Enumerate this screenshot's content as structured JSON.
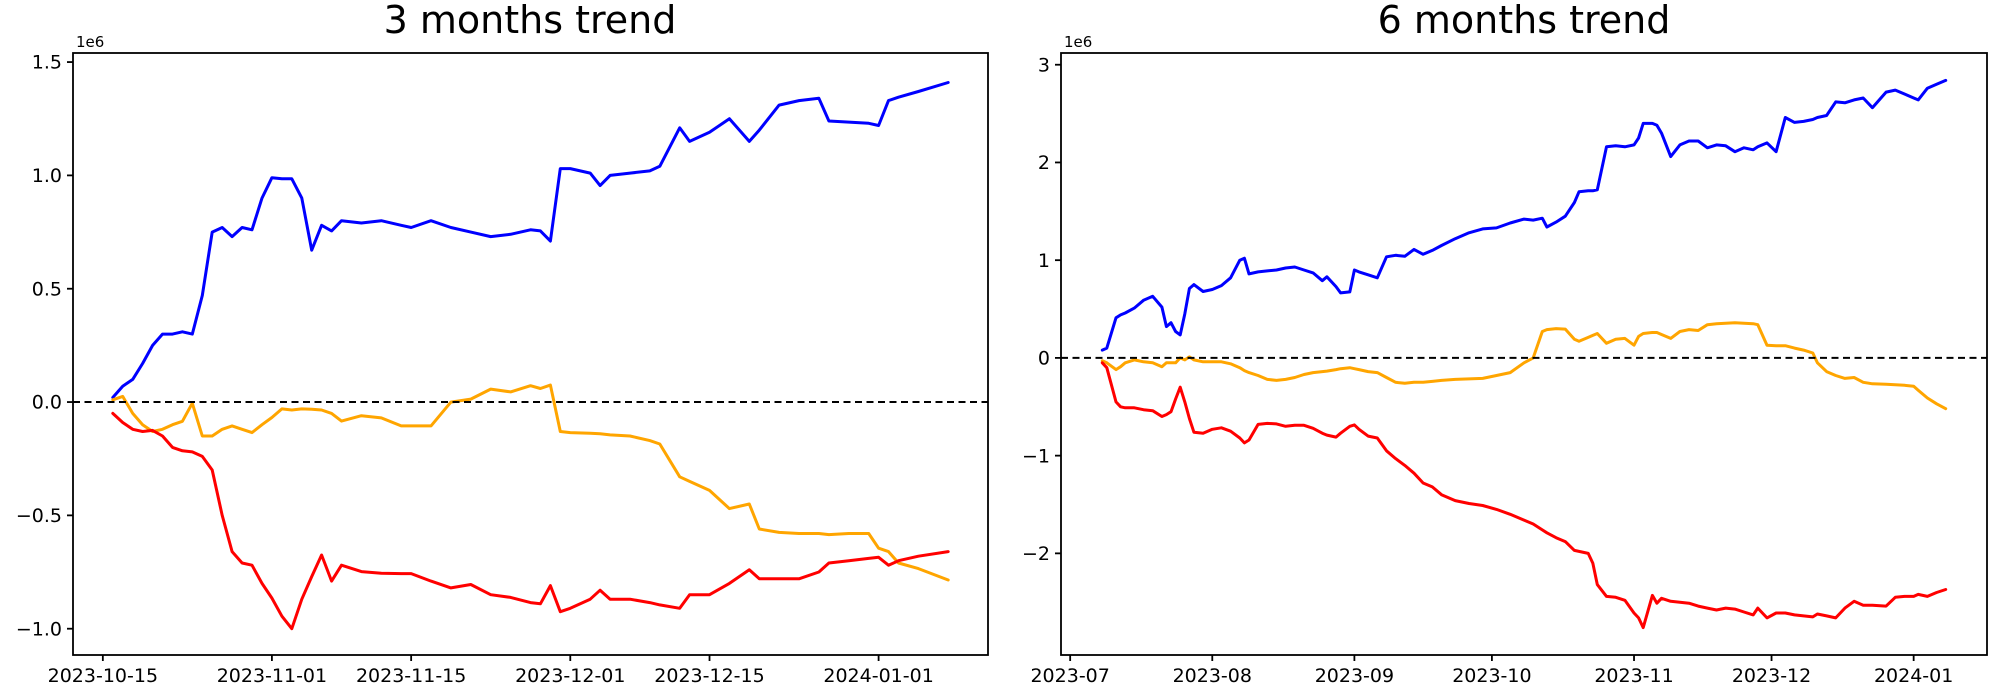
{
  "figure": {
    "background": "#ffffff"
  },
  "chart_data": [
    {
      "type": "line",
      "title": "3 months trend",
      "offset_label": "1e6",
      "xlabel": "",
      "ylabel": "",
      "grid": false,
      "legend": null,
      "x_unit": "date",
      "y_scale_factor": 1000000,
      "xlim": [
        "2023-10-12",
        "2024-01-12"
      ],
      "ylim": [
        -1.116,
        1.54
      ],
      "yticks": [
        {
          "v": 1.5,
          "label": "1.5"
        },
        {
          "v": 1.0,
          "label": "1.0"
        },
        {
          "v": 0.5,
          "label": "0.5"
        },
        {
          "v": 0.0,
          "label": "0.0"
        },
        {
          "v": -0.5,
          "label": "−0.5"
        },
        {
          "v": -1.0,
          "label": "−1.0"
        }
      ],
      "xticks": [
        {
          "date": "2023-10-15",
          "label": "2023-10-15"
        },
        {
          "date": "2023-11-01",
          "label": "2023-11-01"
        },
        {
          "date": "2023-11-15",
          "label": "2023-11-15"
        },
        {
          "date": "2023-12-01",
          "label": "2023-12-01"
        },
        {
          "date": "2023-12-15",
          "label": "2023-12-15"
        },
        {
          "date": "2024-01-01",
          "label": "2024-01-01"
        }
      ],
      "hline": {
        "y": 0,
        "style": "dashed",
        "color": "#000000"
      },
      "dates": [
        "2023-10-16",
        "2023-10-17",
        "2023-10-18",
        "2023-10-19",
        "2023-10-20",
        "2023-10-21",
        "2023-10-22",
        "2023-10-23",
        "2023-10-24",
        "2023-10-25",
        "2023-10-26",
        "2023-10-27",
        "2023-10-28",
        "2023-10-29",
        "2023-10-30",
        "2023-10-31",
        "2023-11-01",
        "2023-11-02",
        "2023-11-03",
        "2023-11-04",
        "2023-11-05",
        "2023-11-06",
        "2023-11-07",
        "2023-11-08",
        "2023-11-10",
        "2023-11-12",
        "2023-11-14",
        "2023-11-15",
        "2023-11-17",
        "2023-11-19",
        "2023-11-21",
        "2023-11-23",
        "2023-11-25",
        "2023-11-27",
        "2023-11-28",
        "2023-11-29",
        "2023-11-30",
        "2023-12-01",
        "2023-12-03",
        "2023-12-04",
        "2023-12-05",
        "2023-12-07",
        "2023-12-09",
        "2023-12-10",
        "2023-12-12",
        "2023-12-13",
        "2023-12-15",
        "2023-12-17",
        "2023-12-19",
        "2023-12-20",
        "2023-12-22",
        "2023-12-24",
        "2023-12-26",
        "2023-12-27",
        "2023-12-29",
        "2023-12-31",
        "2024-01-01",
        "2024-01-02",
        "2024-01-03",
        "2024-01-05",
        "2024-01-08"
      ],
      "series": [
        {
          "name": "blue",
          "color": "#0000ff",
          "values": [
            0.02,
            0.07,
            0.1,
            0.17,
            0.25,
            0.3,
            0.3,
            0.31,
            0.3,
            0.47,
            0.75,
            0.77,
            0.73,
            0.77,
            0.76,
            0.9,
            0.99,
            0.985,
            0.985,
            0.9,
            0.67,
            0.78,
            0.755,
            0.8,
            0.79,
            0.8,
            0.78,
            0.77,
            0.8,
            0.77,
            0.75,
            0.73,
            0.74,
            0.76,
            0.755,
            0.71,
            1.03,
            1.03,
            1.01,
            0.955,
            1.0,
            1.01,
            1.02,
            1.04,
            1.21,
            1.15,
            1.19,
            1.25,
            1.15,
            1.2,
            1.31,
            1.33,
            1.34,
            1.24,
            1.235,
            1.23,
            1.22,
            1.33,
            1.345,
            1.37,
            1.41
          ]
        },
        {
          "name": "orange",
          "color": "#ffa500",
          "values": [
            0.01,
            0.025,
            -0.05,
            -0.1,
            -0.13,
            -0.12,
            -0.1,
            -0.085,
            -0.005,
            -0.15,
            -0.15,
            -0.12,
            -0.105,
            -0.12,
            -0.135,
            -0.1,
            -0.068,
            -0.03,
            -0.035,
            -0.03,
            -0.032,
            -0.035,
            -0.05,
            -0.084,
            -0.06,
            -0.07,
            -0.105,
            -0.105,
            -0.105,
            0.0,
            0.013,
            0.057,
            0.045,
            0.072,
            0.06,
            0.075,
            -0.13,
            -0.135,
            -0.138,
            -0.14,
            -0.145,
            -0.15,
            -0.17,
            -0.185,
            -0.33,
            -0.35,
            -0.39,
            -0.47,
            -0.45,
            -0.56,
            -0.575,
            -0.58,
            -0.58,
            -0.585,
            -0.58,
            -0.58,
            -0.645,
            -0.66,
            -0.71,
            -0.735,
            -0.785
          ]
        },
        {
          "name": "red",
          "color": "#ff0000",
          "values": [
            -0.05,
            -0.09,
            -0.12,
            -0.13,
            -0.125,
            -0.15,
            -0.2,
            -0.215,
            -0.22,
            -0.24,
            -0.3,
            -0.5,
            -0.66,
            -0.71,
            -0.72,
            -0.8,
            -0.865,
            -0.945,
            -1.0,
            -0.87,
            -0.77,
            -0.675,
            -0.79,
            -0.72,
            -0.748,
            -0.755,
            -0.757,
            -0.757,
            -0.79,
            -0.82,
            -0.805,
            -0.85,
            -0.862,
            -0.885,
            -0.89,
            -0.81,
            -0.925,
            -0.91,
            -0.87,
            -0.83,
            -0.87,
            -0.87,
            -0.885,
            -0.895,
            -0.91,
            -0.85,
            -0.85,
            -0.8,
            -0.74,
            -0.78,
            -0.78,
            -0.78,
            -0.75,
            -0.71,
            -0.7,
            -0.69,
            -0.685,
            -0.72,
            -0.7,
            -0.68,
            -0.66
          ]
        }
      ]
    },
    {
      "type": "line",
      "title": "6 months trend",
      "offset_label": "1e6",
      "xlabel": "",
      "ylabel": "",
      "grid": false,
      "legend": null,
      "x_unit": "date",
      "y_scale_factor": 1000000,
      "xlim": [
        "2023-06-29",
        "2024-01-17"
      ],
      "ylim": [
        -3.04,
        3.12
      ],
      "yticks": [
        {
          "v": 3,
          "label": "3"
        },
        {
          "v": 2,
          "label": "2"
        },
        {
          "v": 1,
          "label": "1"
        },
        {
          "v": 0,
          "label": "0"
        },
        {
          "v": -1,
          "label": "−1"
        },
        {
          "v": -2,
          "label": "−2"
        }
      ],
      "xticks": [
        {
          "date": "2023-07-01",
          "label": "2023-07"
        },
        {
          "date": "2023-08-01",
          "label": "2023-08"
        },
        {
          "date": "2023-09-01",
          "label": "2023-09"
        },
        {
          "date": "2023-10-01",
          "label": "2023-10"
        },
        {
          "date": "2023-11-01",
          "label": "2023-11"
        },
        {
          "date": "2023-12-01",
          "label": "2023-12"
        },
        {
          "date": "2024-01-01",
          "label": "2024-01"
        }
      ],
      "hline": {
        "y": 0,
        "style": "dashed",
        "color": "#000000"
      },
      "dates": [
        "2023-07-08",
        "2023-07-09",
        "2023-07-11",
        "2023-07-12",
        "2023-07-13",
        "2023-07-15",
        "2023-07-17",
        "2023-07-19",
        "2023-07-21",
        "2023-07-22",
        "2023-07-23",
        "2023-07-24",
        "2023-07-25",
        "2023-07-26",
        "2023-07-27",
        "2023-07-28",
        "2023-07-30",
        "2023-08-01",
        "2023-08-03",
        "2023-08-05",
        "2023-08-07",
        "2023-08-08",
        "2023-08-09",
        "2023-08-11",
        "2023-08-13",
        "2023-08-15",
        "2023-08-17",
        "2023-08-19",
        "2023-08-21",
        "2023-08-23",
        "2023-08-25",
        "2023-08-26",
        "2023-08-28",
        "2023-08-29",
        "2023-08-31",
        "2023-09-01",
        "2023-09-02",
        "2023-09-04",
        "2023-09-06",
        "2023-09-08",
        "2023-09-10",
        "2023-09-12",
        "2023-09-14",
        "2023-09-16",
        "2023-09-18",
        "2023-09-20",
        "2023-09-23",
        "2023-09-26",
        "2023-09-29",
        "2023-10-02",
        "2023-10-05",
        "2023-10-08",
        "2023-10-10",
        "2023-10-12",
        "2023-10-13",
        "2023-10-15",
        "2023-10-17",
        "2023-10-19",
        "2023-10-20",
        "2023-10-22",
        "2023-10-23",
        "2023-10-24",
        "2023-10-26",
        "2023-10-28",
        "2023-10-30",
        "2023-11-01",
        "2023-11-02",
        "2023-11-03",
        "2023-11-05",
        "2023-11-06",
        "2023-11-07",
        "2023-11-09",
        "2023-11-11",
        "2023-11-13",
        "2023-11-15",
        "2023-11-17",
        "2023-11-19",
        "2023-11-21",
        "2023-11-23",
        "2023-11-25",
        "2023-11-27",
        "2023-11-28",
        "2023-11-30",
        "2023-12-02",
        "2023-12-04",
        "2023-12-06",
        "2023-12-08",
        "2023-12-10",
        "2023-12-11",
        "2023-12-13",
        "2023-12-15",
        "2023-12-17",
        "2023-12-19",
        "2023-12-21",
        "2023-12-23",
        "2023-12-26",
        "2023-12-28",
        "2023-12-30",
        "2024-01-01",
        "2024-01-02",
        "2024-01-04",
        "2024-01-06",
        "2024-01-08"
      ],
      "series": [
        {
          "name": "blue",
          "color": "#0000ff",
          "values": [
            0.08,
            0.1,
            0.41,
            0.44,
            0.46,
            0.51,
            0.59,
            0.63,
            0.52,
            0.32,
            0.36,
            0.27,
            0.235,
            0.45,
            0.71,
            0.75,
            0.68,
            0.7,
            0.74,
            0.82,
            1.0,
            1.02,
            0.86,
            0.88,
            0.89,
            0.9,
            0.92,
            0.93,
            0.9,
            0.87,
            0.79,
            0.83,
            0.73,
            0.665,
            0.675,
            0.9,
            0.88,
            0.85,
            0.82,
            1.035,
            1.05,
            1.04,
            1.11,
            1.06,
            1.1,
            1.15,
            1.22,
            1.28,
            1.32,
            1.33,
            1.38,
            1.42,
            1.41,
            1.43,
            1.34,
            1.39,
            1.45,
            1.59,
            1.7,
            1.71,
            1.71,
            1.72,
            2.16,
            2.17,
            2.16,
            2.18,
            2.25,
            2.4,
            2.4,
            2.38,
            2.3,
            2.06,
            2.18,
            2.22,
            2.22,
            2.15,
            2.18,
            2.17,
            2.11,
            2.15,
            2.13,
            2.16,
            2.2,
            2.11,
            2.46,
            2.41,
            2.42,
            2.44,
            2.46,
            2.48,
            2.62,
            2.61,
            2.64,
            2.66,
            2.56,
            2.72,
            2.74,
            2.7,
            2.66,
            2.64,
            2.76,
            2.8,
            2.84
          ]
        },
        {
          "name": "orange",
          "color": "#ffa500",
          "values": [
            -0.03,
            -0.05,
            -0.12,
            -0.09,
            -0.05,
            -0.02,
            -0.04,
            -0.05,
            -0.09,
            -0.05,
            -0.05,
            -0.05,
            0.0,
            -0.02,
            0.01,
            -0.02,
            -0.04,
            -0.04,
            -0.04,
            -0.06,
            -0.1,
            -0.13,
            -0.15,
            -0.18,
            -0.22,
            -0.23,
            -0.22,
            -0.2,
            -0.17,
            -0.15,
            -0.14,
            -0.135,
            -0.12,
            -0.11,
            -0.1,
            -0.11,
            -0.12,
            -0.14,
            -0.15,
            -0.2,
            -0.25,
            -0.26,
            -0.25,
            -0.25,
            -0.24,
            -0.23,
            -0.22,
            -0.215,
            -0.21,
            -0.18,
            -0.15,
            -0.05,
            0.0,
            0.27,
            0.29,
            0.3,
            0.295,
            0.19,
            0.17,
            0.21,
            0.23,
            0.25,
            0.15,
            0.19,
            0.2,
            0.13,
            0.22,
            0.25,
            0.26,
            0.26,
            0.24,
            0.2,
            0.27,
            0.29,
            0.28,
            0.34,
            0.35,
            0.355,
            0.36,
            0.355,
            0.35,
            0.34,
            0.13,
            0.125,
            0.125,
            0.1,
            0.08,
            0.05,
            -0.05,
            -0.14,
            -0.18,
            -0.21,
            -0.2,
            -0.25,
            -0.265,
            -0.27,
            -0.275,
            -0.28,
            -0.29,
            -0.33,
            -0.41,
            -0.47,
            -0.52
          ]
        },
        {
          "name": "red",
          "color": "#ff0000",
          "values": [
            -0.05,
            -0.1,
            -0.45,
            -0.5,
            -0.51,
            -0.51,
            -0.53,
            -0.54,
            -0.6,
            -0.58,
            -0.55,
            -0.42,
            -0.3,
            -0.45,
            -0.62,
            -0.76,
            -0.77,
            -0.73,
            -0.715,
            -0.75,
            -0.82,
            -0.87,
            -0.84,
            -0.68,
            -0.67,
            -0.675,
            -0.7,
            -0.69,
            -0.69,
            -0.72,
            -0.77,
            -0.79,
            -0.81,
            -0.77,
            -0.7,
            -0.685,
            -0.73,
            -0.8,
            -0.82,
            -0.95,
            -1.03,
            -1.1,
            -1.18,
            -1.28,
            -1.32,
            -1.4,
            -1.46,
            -1.49,
            -1.51,
            -1.55,
            -1.6,
            -1.66,
            -1.7,
            -1.76,
            -1.79,
            -1.84,
            -1.88,
            -1.97,
            -1.98,
            -2.0,
            -2.1,
            -2.32,
            -2.44,
            -2.45,
            -2.48,
            -2.61,
            -2.66,
            -2.76,
            -2.43,
            -2.51,
            -2.46,
            -2.49,
            -2.5,
            -2.51,
            -2.54,
            -2.56,
            -2.58,
            -2.56,
            -2.57,
            -2.6,
            -2.63,
            -2.56,
            -2.66,
            -2.61,
            -2.61,
            -2.63,
            -2.64,
            -2.65,
            -2.62,
            -2.64,
            -2.66,
            -2.56,
            -2.49,
            -2.53,
            -2.53,
            -2.54,
            -2.45,
            -2.44,
            -2.44,
            -2.42,
            -2.44,
            -2.4,
            -2.37
          ]
        }
      ]
    }
  ]
}
